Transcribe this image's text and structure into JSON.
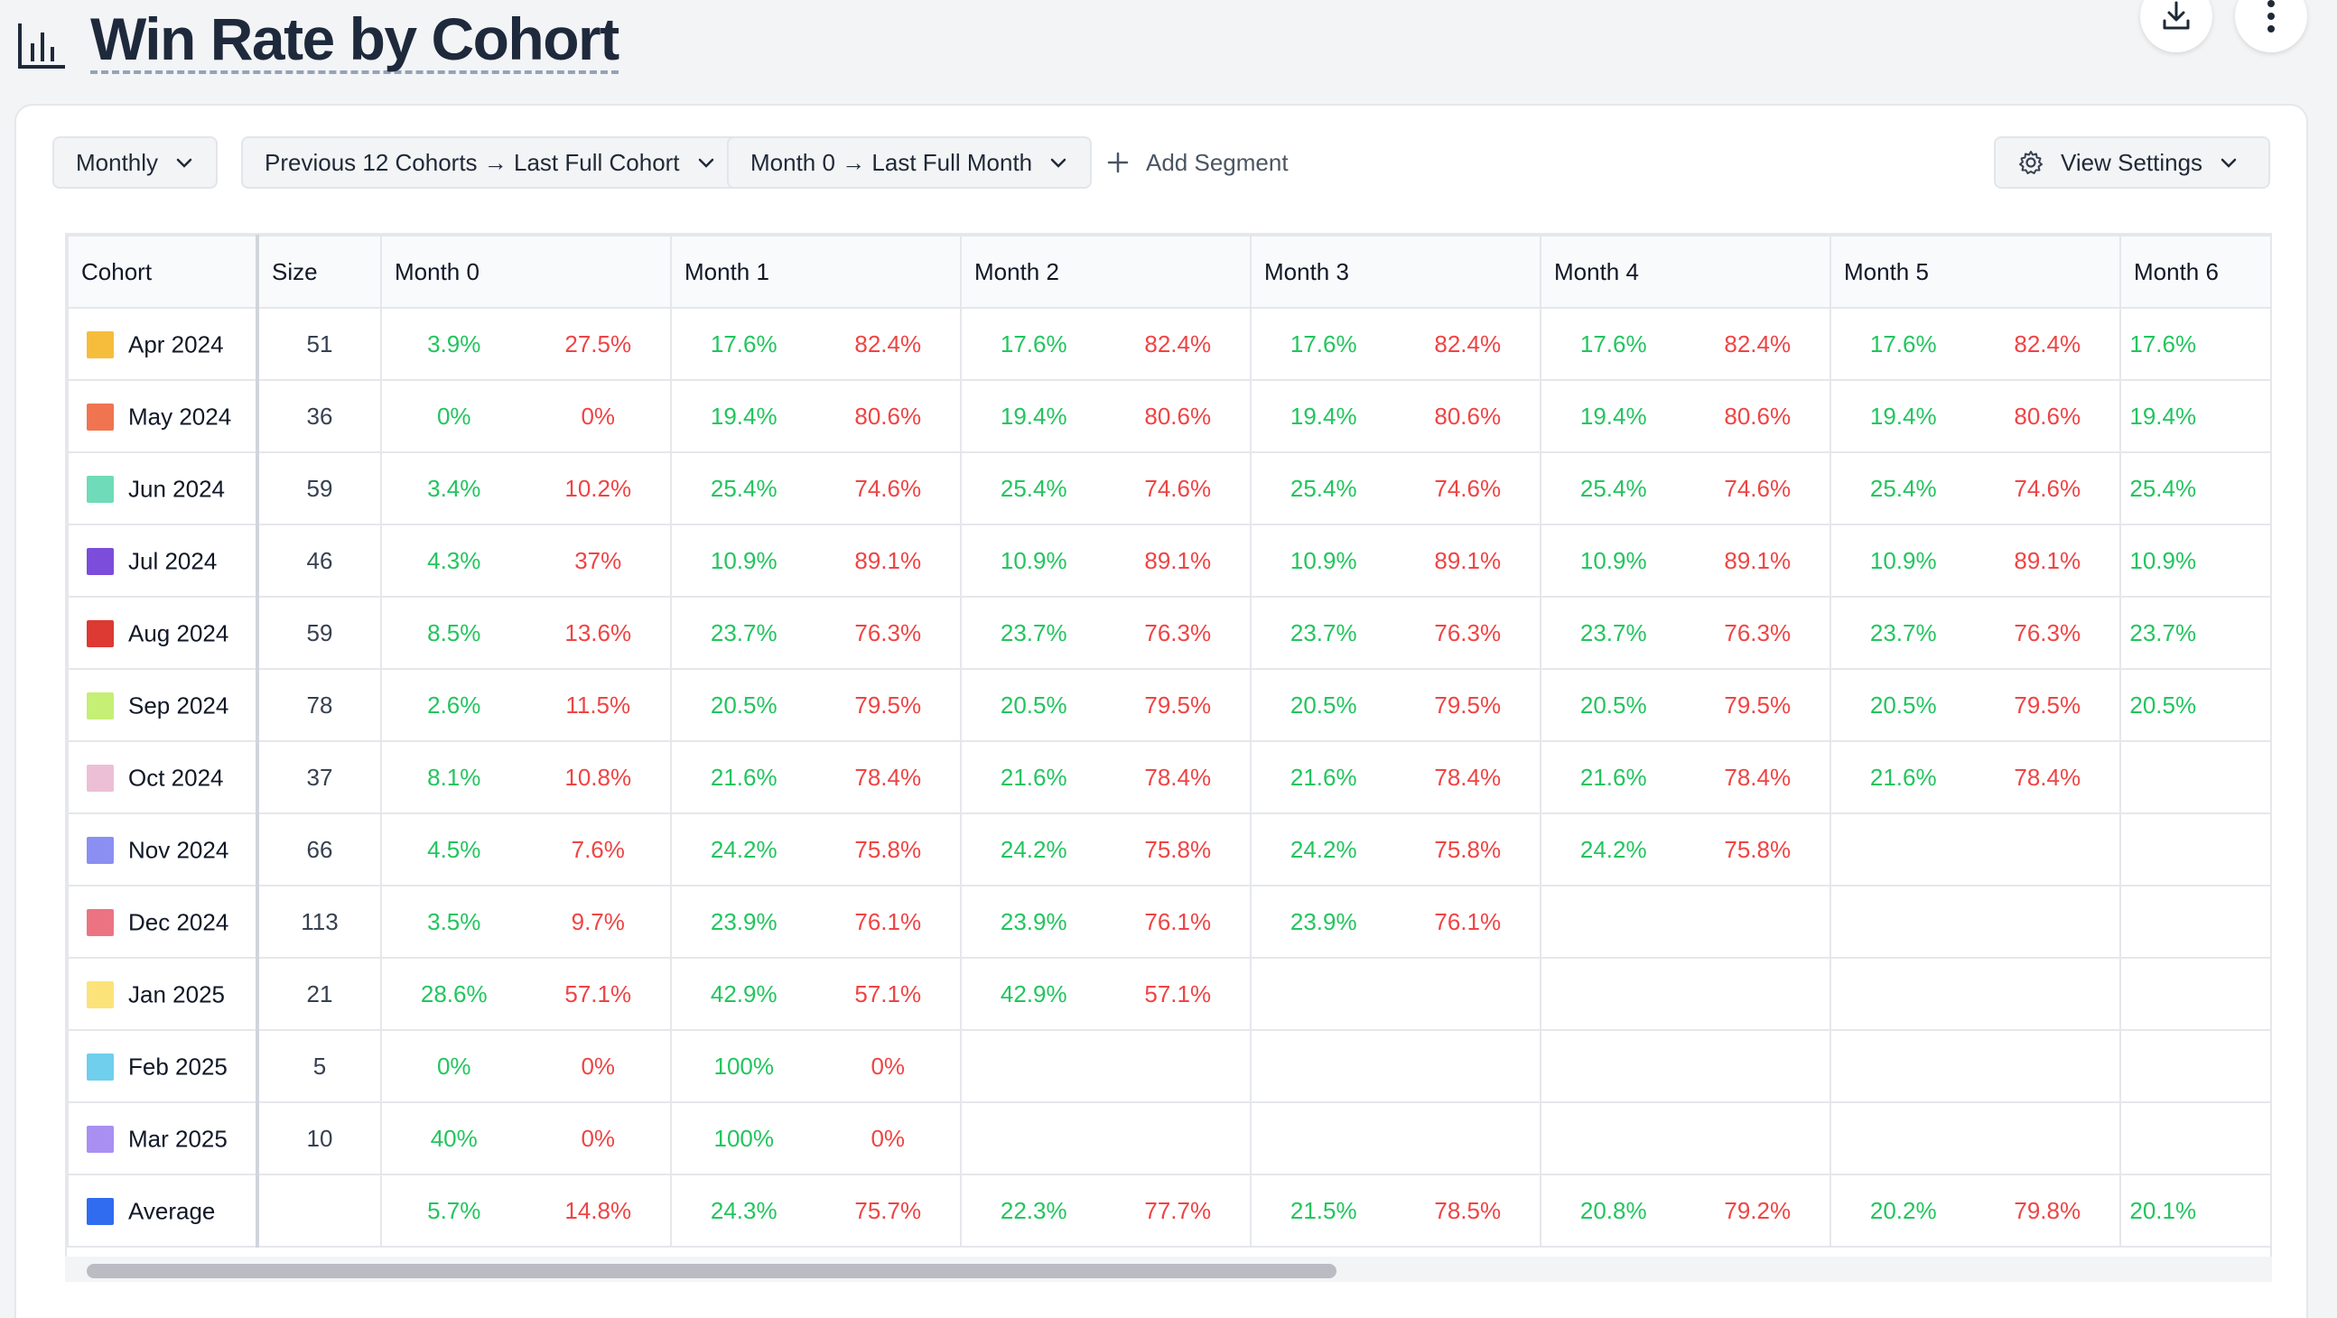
{
  "page": {
    "title": "Win Rate by Cohort"
  },
  "toolbar": {
    "period": "Monthly",
    "cohort_range": "Previous 12 Cohorts → Last Full Cohort",
    "month_range": "Month 0 → Last Full Month",
    "add_segment": "Add Segment",
    "view_settings": "View Settings"
  },
  "table": {
    "headers": [
      "Cohort",
      "Size",
      "Month 0",
      "Month 1",
      "Month 2",
      "Month 3",
      "Month 4",
      "Month 5",
      "Month 6"
    ],
    "rows": [
      {
        "cohort": "Apr 2024",
        "color": "#f6bd3d",
        "size": "51",
        "cells": [
          [
            "3.9%",
            "27.5%"
          ],
          [
            "17.6%",
            "82.4%"
          ],
          [
            "17.6%",
            "82.4%"
          ],
          [
            "17.6%",
            "82.4%"
          ],
          [
            "17.6%",
            "82.4%"
          ],
          [
            "17.6%",
            "82.4%"
          ],
          [
            "17.6%",
            ""
          ]
        ]
      },
      {
        "cohort": "May 2024",
        "color": "#f0744f",
        "size": "36",
        "cells": [
          [
            "0%",
            "0%"
          ],
          [
            "19.4%",
            "80.6%"
          ],
          [
            "19.4%",
            "80.6%"
          ],
          [
            "19.4%",
            "80.6%"
          ],
          [
            "19.4%",
            "80.6%"
          ],
          [
            "19.4%",
            "80.6%"
          ],
          [
            "19.4%",
            ""
          ]
        ]
      },
      {
        "cohort": "Jun 2024",
        "color": "#6fdbb8",
        "size": "59",
        "cells": [
          [
            "3.4%",
            "10.2%"
          ],
          [
            "25.4%",
            "74.6%"
          ],
          [
            "25.4%",
            "74.6%"
          ],
          [
            "25.4%",
            "74.6%"
          ],
          [
            "25.4%",
            "74.6%"
          ],
          [
            "25.4%",
            "74.6%"
          ],
          [
            "25.4%",
            ""
          ]
        ]
      },
      {
        "cohort": "Jul 2024",
        "color": "#7c4ddb",
        "size": "46",
        "cells": [
          [
            "4.3%",
            "37%"
          ],
          [
            "10.9%",
            "89.1%"
          ],
          [
            "10.9%",
            "89.1%"
          ],
          [
            "10.9%",
            "89.1%"
          ],
          [
            "10.9%",
            "89.1%"
          ],
          [
            "10.9%",
            "89.1%"
          ],
          [
            "10.9%",
            ""
          ]
        ]
      },
      {
        "cohort": "Aug 2024",
        "color": "#dc3a32",
        "size": "59",
        "cells": [
          [
            "8.5%",
            "13.6%"
          ],
          [
            "23.7%",
            "76.3%"
          ],
          [
            "23.7%",
            "76.3%"
          ],
          [
            "23.7%",
            "76.3%"
          ],
          [
            "23.7%",
            "76.3%"
          ],
          [
            "23.7%",
            "76.3%"
          ],
          [
            "23.7%",
            ""
          ]
        ]
      },
      {
        "cohort": "Sep 2024",
        "color": "#c6ef76",
        "size": "78",
        "cells": [
          [
            "2.6%",
            "11.5%"
          ],
          [
            "20.5%",
            "79.5%"
          ],
          [
            "20.5%",
            "79.5%"
          ],
          [
            "20.5%",
            "79.5%"
          ],
          [
            "20.5%",
            "79.5%"
          ],
          [
            "20.5%",
            "79.5%"
          ],
          [
            "20.5%",
            ""
          ]
        ]
      },
      {
        "cohort": "Oct 2024",
        "color": "#ecbfd7",
        "size": "37",
        "cells": [
          [
            "8.1%",
            "10.8%"
          ],
          [
            "21.6%",
            "78.4%"
          ],
          [
            "21.6%",
            "78.4%"
          ],
          [
            "21.6%",
            "78.4%"
          ],
          [
            "21.6%",
            "78.4%"
          ],
          [
            "21.6%",
            "78.4%"
          ],
          [
            "",
            ""
          ]
        ]
      },
      {
        "cohort": "Nov 2024",
        "color": "#8b8ff2",
        "size": "66",
        "cells": [
          [
            "4.5%",
            "7.6%"
          ],
          [
            "24.2%",
            "75.8%"
          ],
          [
            "24.2%",
            "75.8%"
          ],
          [
            "24.2%",
            "75.8%"
          ],
          [
            "24.2%",
            "75.8%"
          ],
          [
            "",
            ""
          ],
          [
            "",
            ""
          ]
        ]
      },
      {
        "cohort": "Dec 2024",
        "color": "#ec7482",
        "size": "113",
        "cells": [
          [
            "3.5%",
            "9.7%"
          ],
          [
            "23.9%",
            "76.1%"
          ],
          [
            "23.9%",
            "76.1%"
          ],
          [
            "23.9%",
            "76.1%"
          ],
          [
            "",
            ""
          ],
          [
            "",
            ""
          ],
          [
            "",
            ""
          ]
        ]
      },
      {
        "cohort": "Jan 2025",
        "color": "#fbe37a",
        "size": "21",
        "cells": [
          [
            "28.6%",
            "57.1%"
          ],
          [
            "42.9%",
            "57.1%"
          ],
          [
            "42.9%",
            "57.1%"
          ],
          [
            "",
            ""
          ],
          [
            "",
            ""
          ],
          [
            "",
            ""
          ],
          [
            "",
            ""
          ]
        ]
      },
      {
        "cohort": "Feb 2025",
        "color": "#6fcfec",
        "size": "5",
        "cells": [
          [
            "0%",
            "0%"
          ],
          [
            "100%",
            "0%"
          ],
          [
            "",
            ""
          ],
          [
            "",
            ""
          ],
          [
            "",
            ""
          ],
          [
            "",
            ""
          ],
          [
            "",
            ""
          ]
        ]
      },
      {
        "cohort": "Mar 2025",
        "color": "#a98ff2",
        "size": "10",
        "cells": [
          [
            "40%",
            "0%"
          ],
          [
            "100%",
            "0%"
          ],
          [
            "",
            ""
          ],
          [
            "",
            ""
          ],
          [
            "",
            ""
          ],
          [
            "",
            ""
          ],
          [
            "",
            ""
          ]
        ]
      },
      {
        "cohort": "Average",
        "color": "#2f6cf0",
        "size": "",
        "cells": [
          [
            "5.7%",
            "14.8%"
          ],
          [
            "24.3%",
            "75.7%"
          ],
          [
            "22.3%",
            "77.7%"
          ],
          [
            "21.5%",
            "78.5%"
          ],
          [
            "20.8%",
            "79.2%"
          ],
          [
            "20.2%",
            "79.8%"
          ],
          [
            "20.1%",
            ""
          ]
        ]
      }
    ]
  },
  "colors": {
    "win": "#22c55e",
    "loss": "#ef4444"
  }
}
